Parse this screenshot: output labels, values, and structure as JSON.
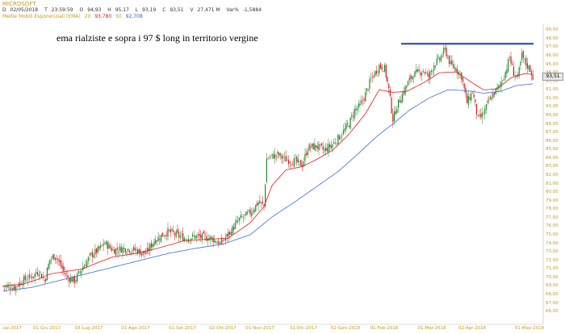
{
  "header": {
    "symbol": "MICROSOFT",
    "ohlc": [
      {
        "key": "D",
        "value": "02/05/2018"
      },
      {
        "key": "T",
        "value": "23:59:59"
      },
      {
        "key": "O",
        "value": "94,93"
      },
      {
        "key": "H",
        "value": "95,17"
      },
      {
        "key": "L",
        "value": "93,19"
      },
      {
        "key": "C",
        "value": "93,51"
      },
      {
        "key": "V",
        "value": "27,471 M"
      },
      {
        "key": "Var%",
        "value": "-1,5884"
      }
    ],
    "indicator": {
      "name": "Medie Mobili Esponenziali (EMA)",
      "period_fast": "20",
      "value_fast": "93,780",
      "period_slow": "50",
      "value_slow": "92,708"
    }
  },
  "annotation": "ema rialziste e sopra i 97 $ long in territorio vergine",
  "colors": {
    "candle_up": "#1a8a2a",
    "candle_down": "#c81e1e",
    "ema_fast": "#e31a1c",
    "ema_slow": "#3a6fd8",
    "resistance": "#1f3fbf",
    "axis_text": "#c79a1a"
  },
  "chart_data": {
    "type": "candlestick",
    "ylim": [
      65,
      100
    ],
    "y_ticks": [
      "66,00",
      "67,00",
      "68,00",
      "69,00",
      "70,00",
      "71,00",
      "72,00",
      "73,00",
      "74,00",
      "75,00",
      "76,00",
      "77,00",
      "78,00",
      "79,00",
      "80,00",
      "81,00",
      "82,00",
      "83,00",
      "84,00",
      "85,00",
      "86,00",
      "87,00",
      "88,00",
      "89,00",
      "90,00",
      "91,00",
      "92,00",
      "93,00",
      "94,00",
      "95,00",
      "96,00",
      "97,00",
      "98,00",
      "99,00"
    ],
    "x_ticks": [
      "ap-2017",
      "01-Giu-2017",
      "03-Lug-2017",
      "01-Ago-2017",
      "01-Set-2017",
      "02-Ott-2017",
      "01-Nov-2017",
      "01-Dic-2017",
      "02-Gen-2018",
      "01-Feb-2018",
      "01-Mar-2018",
      "02-Apr-2018",
      "01-May-2018"
    ],
    "last_value": "93,51",
    "resistance_level": 97.4,
    "close_path": [
      [
        0,
        69.0
      ],
      [
        8,
        68.8
      ],
      [
        14,
        69.6
      ],
      [
        22,
        70.2
      ],
      [
        26,
        70.8
      ],
      [
        30,
        69.6
      ],
      [
        34,
        72.1
      ],
      [
        38,
        72.6
      ],
      [
        46,
        70.1
      ],
      [
        52,
        69.6
      ],
      [
        58,
        71.2
      ],
      [
        64,
        72.6
      ],
      [
        70,
        73.3
      ],
      [
        74,
        74.0
      ],
      [
        80,
        73.2
      ],
      [
        88,
        73.4
      ],
      [
        96,
        73.2
      ],
      [
        104,
        72.8
      ],
      [
        110,
        74.3
      ],
      [
        120,
        75.4
      ],
      [
        132,
        74.6
      ],
      [
        140,
        74.8
      ],
      [
        152,
        74.6
      ],
      [
        158,
        73.9
      ],
      [
        164,
        75.0
      ],
      [
        172,
        76.8
      ],
      [
        180,
        77.6
      ],
      [
        186,
        78.8
      ],
      [
        190,
        78.4
      ],
      [
        192,
        83.9
      ],
      [
        196,
        84.2
      ],
      [
        200,
        84.4
      ],
      [
        206,
        83.8
      ],
      [
        212,
        83.6
      ],
      [
        218,
        83.2
      ],
      [
        222,
        85.2
      ],
      [
        228,
        85.4
      ],
      [
        234,
        84.9
      ],
      [
        240,
        85.6
      ],
      [
        246,
        86.7
      ],
      [
        252,
        88.0
      ],
      [
        256,
        89.6
      ],
      [
        260,
        90.1
      ],
      [
        264,
        91.5
      ],
      [
        268,
        93.2
      ],
      [
        274,
        94.8
      ],
      [
        278,
        94.5
      ],
      [
        281,
        92.0
      ],
      [
        284,
        88.5
      ],
      [
        287,
        90.1
      ],
      [
        290,
        91.2
      ],
      [
        294,
        92.5
      ],
      [
        298,
        93.7
      ],
      [
        302,
        94.0
      ],
      [
        306,
        94.3
      ],
      [
        310,
        93.5
      ],
      [
        314,
        95.0
      ],
      [
        318,
        95.6
      ],
      [
        322,
        96.7
      ],
      [
        326,
        94.9
      ],
      [
        330,
        94.5
      ],
      [
        334,
        93.6
      ],
      [
        338,
        90.5
      ],
      [
        342,
        91.8
      ],
      [
        346,
        88.5
      ],
      [
        350,
        89.2
      ],
      [
        354,
        90.7
      ],
      [
        358,
        91.7
      ],
      [
        362,
        92.5
      ],
      [
        366,
        94.1
      ],
      [
        369,
        95.8
      ],
      [
        372,
        94.0
      ],
      [
        375,
        93.4
      ],
      [
        378,
        96.0
      ],
      [
        381,
        95.0
      ],
      [
        384,
        94.4
      ],
      [
        386,
        93.5
      ]
    ],
    "ema_fast_path": [
      [
        0,
        69.0
      ],
      [
        14,
        69.2
      ],
      [
        26,
        69.8
      ],
      [
        34,
        70.4
      ],
      [
        46,
        70.7
      ],
      [
        58,
        71.0
      ],
      [
        70,
        71.8
      ],
      [
        80,
        72.4
      ],
      [
        96,
        72.8
      ],
      [
        110,
        73.3
      ],
      [
        132,
        74.3
      ],
      [
        152,
        74.5
      ],
      [
        164,
        74.6
      ],
      [
        180,
        76.4
      ],
      [
        190,
        78.3
      ],
      [
        196,
        80.8
      ],
      [
        206,
        82.6
      ],
      [
        218,
        83.0
      ],
      [
        228,
        83.8
      ],
      [
        240,
        84.9
      ],
      [
        252,
        86.8
      ],
      [
        264,
        89.2
      ],
      [
        274,
        92.0
      ],
      [
        284,
        91.7
      ],
      [
        294,
        91.8
      ],
      [
        306,
        92.8
      ],
      [
        318,
        94.0
      ],
      [
        330,
        94.1
      ],
      [
        342,
        92.8
      ],
      [
        350,
        92.0
      ],
      [
        360,
        92.1
      ],
      [
        370,
        93.4
      ],
      [
        380,
        93.9
      ],
      [
        386,
        93.8
      ]
    ],
    "ema_slow_path": [
      [
        0,
        68.4
      ],
      [
        20,
        68.8
      ],
      [
        40,
        69.6
      ],
      [
        60,
        70.4
      ],
      [
        80,
        71.2
      ],
      [
        100,
        72.0
      ],
      [
        120,
        72.8
      ],
      [
        140,
        73.4
      ],
      [
        160,
        73.9
      ],
      [
        180,
        75.0
      ],
      [
        196,
        77.1
      ],
      [
        212,
        78.8
      ],
      [
        228,
        80.6
      ],
      [
        244,
        82.4
      ],
      [
        258,
        84.4
      ],
      [
        272,
        86.5
      ],
      [
        284,
        88.0
      ],
      [
        296,
        89.6
      ],
      [
        310,
        91.0
      ],
      [
        324,
        92.0
      ],
      [
        338,
        91.9
      ],
      [
        350,
        91.6
      ],
      [
        362,
        91.8
      ],
      [
        374,
        92.5
      ],
      [
        386,
        92.7
      ]
    ]
  }
}
